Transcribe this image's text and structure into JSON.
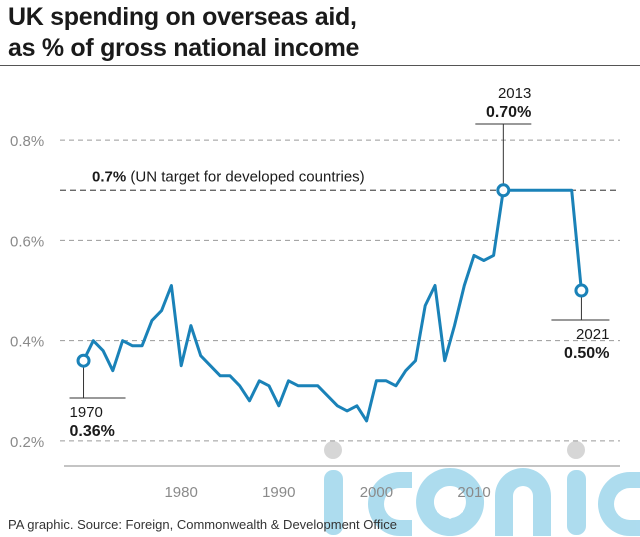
{
  "title_lines": [
    "UK spending on overseas aid,",
    "as % of gross national income"
  ],
  "source": "PA graphic. Source: Foreign, Commonwealth & Development Office",
  "watermark": {
    "text": "iconic",
    "color": "#9fd6ec"
  },
  "colors": {
    "line": "#1a82b8",
    "grid": "#9a9a9a",
    "target": "#555555",
    "text": "#1a1a1a"
  },
  "chart_data": {
    "type": "line",
    "x": [
      1970,
      1971,
      1972,
      1973,
      1974,
      1975,
      1976,
      1977,
      1978,
      1979,
      1980,
      1981,
      1982,
      1983,
      1984,
      1985,
      1986,
      1987,
      1988,
      1989,
      1990,
      1991,
      1992,
      1993,
      1994,
      1995,
      1996,
      1997,
      1998,
      1999,
      2000,
      2001,
      2002,
      2003,
      2004,
      2005,
      2006,
      2007,
      2008,
      2009,
      2010,
      2011,
      2012,
      2013,
      2014,
      2015,
      2016,
      2017,
      2018,
      2019,
      2020,
      2021
    ],
    "y": [
      0.36,
      0.4,
      0.38,
      0.34,
      0.4,
      0.39,
      0.39,
      0.44,
      0.46,
      0.51,
      0.35,
      0.43,
      0.37,
      0.35,
      0.33,
      0.33,
      0.31,
      0.28,
      0.32,
      0.31,
      0.27,
      0.32,
      0.31,
      0.31,
      0.31,
      0.29,
      0.27,
      0.26,
      0.27,
      0.24,
      0.32,
      0.32,
      0.31,
      0.34,
      0.36,
      0.47,
      0.51,
      0.36,
      0.43,
      0.51,
      0.57,
      0.56,
      0.57,
      0.7,
      0.7,
      0.7,
      0.7,
      0.7,
      0.7,
      0.7,
      0.7,
      0.5
    ],
    "ylim": [
      0.15,
      0.9
    ],
    "xlim": [
      1968,
      2027
    ],
    "yticks": [
      0.2,
      0.4,
      0.6,
      0.8
    ],
    "ytick_labels": [
      "0.2%",
      "0.4%",
      "0.6%",
      "0.8%"
    ],
    "xticks": [
      1980,
      1990,
      2000,
      2010
    ],
    "xtick_labels": [
      "1980",
      "1990",
      "2000",
      "2010"
    ],
    "target": {
      "value": 0.7,
      "label_bold": "0.7%",
      "label_rest": " (UN target for developed countries)"
    },
    "annotations": [
      {
        "x": 1970,
        "y": 0.36,
        "year": "1970",
        "value": "0.36%",
        "side": "below"
      },
      {
        "x": 2013,
        "y": 0.7,
        "year": "2013",
        "value": "0.70%",
        "side": "above"
      },
      {
        "x": 2021,
        "y": 0.5,
        "year": "2021",
        "value": "0.50%",
        "side": "below"
      }
    ]
  }
}
